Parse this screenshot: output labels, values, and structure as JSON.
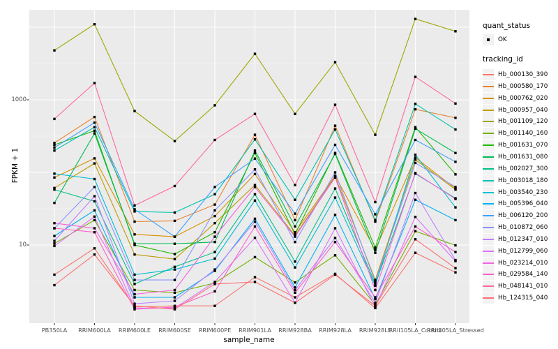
{
  "figure": {
    "y_axis": {
      "title": "FPKM + 1",
      "ticks": [
        {
          "label": "1000",
          "value": 1000
        },
        {
          "label": "10",
          "value": 10
        }
      ]
    },
    "x_axis": {
      "title": "sample_name"
    },
    "legend": {
      "quant_status": {
        "title": "quant_status",
        "items": [
          {
            "label": "OK"
          }
        ]
      },
      "tracking_id": {
        "title": "tracking_id"
      }
    }
  },
  "chart_data": {
    "type": "line",
    "title": "",
    "xlabel": "sample_name",
    "ylabel": "FPKM + 1",
    "y_scale": "log10",
    "ylim": [
      1,
      20000
    ],
    "grid": "on",
    "legend_position": "right",
    "panel_bg": "#EBEBEB",
    "grid_color": "#FFFFFF",
    "point_color": "#000000",
    "point_shape": "square",
    "categories": [
      "PB350LA",
      "RRIM600LA",
      "RRIM600LE",
      "RRIM600SE",
      "RRIM600PE",
      "RRIM901LA",
      "RRIM928BA",
      "RRIM928LA",
      "RRIM928LE",
      "RRII105LA_Control",
      "RRII105LA_Stressed"
    ],
    "series": [
      {
        "name": "Hb_000130_390",
        "color": "#F8766D",
        "values": [
          3.9,
          9,
          1.4,
          1.45,
          1.45,
          3.6,
          1.9,
          4,
          1.35,
          7.8,
          4.2
        ]
      },
      {
        "name": "Hb_000580_170",
        "color": "#EA8331",
        "values": [
          255,
          580,
          21,
          21.5,
          36,
          330,
          22,
          440,
          21,
          740,
          565
        ]
      },
      {
        "name": "Hb_000762_020",
        "color": "#D69100",
        "values": [
          85,
          156,
          14,
          13,
          25,
          95,
          15,
          90,
          8.5,
          160,
          60
        ]
      },
      {
        "name": "Hb_000957_040",
        "color": "#BE9C00",
        "values": [
          61,
          133,
          7.4,
          6.4,
          20,
          67,
          13.5,
          88,
          3.3,
          150,
          58
        ]
      },
      {
        "name": "Hb_001109_120",
        "color": "#9DA700",
        "values": [
          4800,
          11000,
          700,
          270,
          840,
          4300,
          640,
          3300,
          330,
          13000,
          8800
        ]
      },
      {
        "name": "Hb_001140_160",
        "color": "#72B000",
        "values": [
          10.5,
          22,
          2.4,
          2.2,
          3,
          6.8,
          3.05,
          7.2,
          1.5,
          15.5,
          9.9
        ]
      },
      {
        "name": "Hb_001631_070",
        "color": "#24B700",
        "values": [
          240,
          375,
          10,
          7.5,
          15,
          185,
          14,
          185,
          9.2,
          420,
          94
        ]
      },
      {
        "name": "Hb_001631_080",
        "color": "#00BC51",
        "values": [
          38,
          345,
          10.4,
          10.4,
          11,
          200,
          18,
          180,
          7.8,
          400,
          185
        ]
      },
      {
        "name": "Hb_002027_300",
        "color": "#00C087",
        "values": [
          58,
          40,
          2.9,
          5,
          8,
          50,
          5.9,
          60,
          2.9,
          96,
          44
        ]
      },
      {
        "name": "Hb_003018_180",
        "color": "#00C1B2",
        "values": [
          200,
          420,
          29,
          28,
          50,
          285,
          42,
          390,
          22,
          880,
          390
        ]
      },
      {
        "name": "Hb_003540_230",
        "color": "#00BDD4",
        "values": [
          96,
          81,
          3.9,
          4.6,
          6.5,
          41,
          4.9,
          45,
          2.75,
          175,
          33
        ]
      },
      {
        "name": "Hb_005396_040",
        "color": "#00B2F3",
        "values": [
          13.3,
          30,
          1.9,
          1.9,
          4.4,
          23,
          2.6,
          26,
          1.8,
          42,
          22
        ]
      },
      {
        "name": "Hb_006120_200",
        "color": "#3DA1FF",
        "values": [
          220,
          485,
          31,
          13,
          63,
          155,
          27,
          240,
          26.5,
          280,
          140
        ]
      },
      {
        "name": "Hb_010872_060",
        "color": "#8B93FF",
        "values": [
          17,
          63,
          3.3,
          3.3,
          30,
          110,
          11,
          100,
          3.1,
          135,
          63
        ]
      },
      {
        "name": "Hb_012347_010",
        "color": "#BC81FF",
        "values": [
          11.4,
          47,
          1.55,
          1.7,
          4.6,
          21,
          2.4,
          12.5,
          1.6,
          52,
          6.2
        ]
      },
      {
        "name": "Hb_012799_060",
        "color": "#DC71FA",
        "values": [
          9.7,
          24.6,
          1.35,
          1.35,
          3.1,
          12.6,
          1.6,
          17,
          1.4,
          24.4,
          6
        ]
      },
      {
        "name": "Hb_023214_010",
        "color": "#F263E2",
        "values": [
          20,
          17,
          2.1,
          2.4,
          13,
          63,
          13,
          85,
          2.4,
          98,
          43
        ]
      },
      {
        "name": "Hb_029584_140",
        "color": "#FF61C7",
        "values": [
          17,
          15,
          1.3,
          1.4,
          2.3,
          18,
          2.2,
          11,
          1.9,
          18,
          8
        ]
      },
      {
        "name": "Hb_048141_010",
        "color": "#FF689E",
        "values": [
          545,
          1700,
          35,
          65,
          280,
          640,
          67,
          855,
          39,
          2070,
          890
        ]
      },
      {
        "name": "Hb_124315_040",
        "color": "#FD6F74",
        "values": [
          2.8,
          7.4,
          1.45,
          1.3,
          2.9,
          3.1,
          1.6,
          3.9,
          1.45,
          12,
          4.8
        ]
      }
    ]
  }
}
